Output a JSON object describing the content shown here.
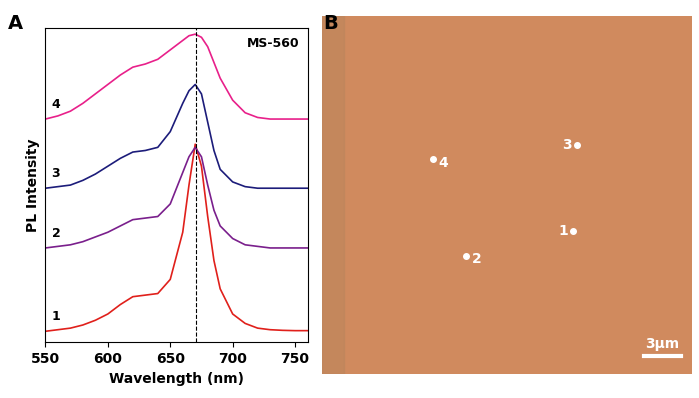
{
  "chart_data": {
    "type": "line",
    "panel": "A",
    "title": "MS-560",
    "x_label": "Wavelength (nm)",
    "y_label": "PL Intensity",
    "xlim": [
      550,
      760
    ],
    "xticks": [
      550,
      600,
      650,
      700,
      750
    ],
    "ylim": [
      0,
      10
    ],
    "tick_labels": "x",
    "vline_x": 671,
    "line_style": "dashed",
    "x": [
      550,
      560,
      570,
      580,
      590,
      600,
      610,
      620,
      630,
      640,
      650,
      660,
      665,
      670,
      675,
      680,
      685,
      690,
      700,
      710,
      720,
      730,
      740,
      750,
      760
    ],
    "series": [
      {
        "name": "1",
        "color": "#e0201b",
        "values": [
          0.35,
          0.4,
          0.45,
          0.55,
          0.7,
          0.9,
          1.2,
          1.45,
          1.5,
          1.55,
          2.0,
          3.5,
          5.0,
          6.3,
          5.6,
          4.0,
          2.6,
          1.7,
          0.9,
          0.6,
          0.45,
          0.4,
          0.38,
          0.37,
          0.37
        ]
      },
      {
        "name": "2",
        "color": "#7a1f8c",
        "values": [
          3.0,
          3.05,
          3.1,
          3.2,
          3.35,
          3.5,
          3.7,
          3.9,
          3.95,
          4.0,
          4.4,
          5.4,
          5.9,
          6.2,
          5.9,
          5.0,
          4.2,
          3.7,
          3.3,
          3.1,
          3.05,
          3.0,
          3.0,
          3.0,
          3.0
        ]
      },
      {
        "name": "3",
        "color": "#1c1c7a",
        "values": [
          4.9,
          4.95,
          5.0,
          5.15,
          5.35,
          5.6,
          5.85,
          6.05,
          6.1,
          6.2,
          6.7,
          7.6,
          8.0,
          8.2,
          7.9,
          7.0,
          6.1,
          5.5,
          5.1,
          4.95,
          4.9,
          4.9,
          4.9,
          4.9,
          4.9
        ]
      },
      {
        "name": "4",
        "color": "#e8208a",
        "values": [
          7.1,
          7.2,
          7.35,
          7.6,
          7.9,
          8.2,
          8.5,
          8.75,
          8.85,
          9.0,
          9.3,
          9.6,
          9.75,
          9.8,
          9.7,
          9.4,
          8.9,
          8.4,
          7.7,
          7.3,
          7.15,
          7.1,
          7.1,
          7.1,
          7.1
        ]
      }
    ]
  },
  "image_panel": {
    "panel": "B",
    "points": [
      "1",
      "2",
      "3",
      "4"
    ],
    "scale_bar": "3μm"
  }
}
